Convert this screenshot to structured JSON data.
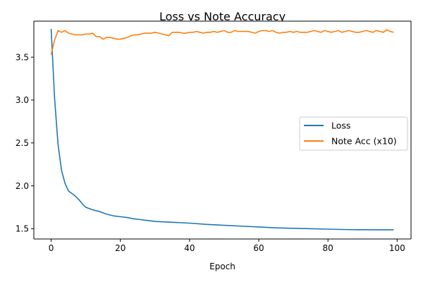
{
  "chart_data": {
    "type": "line",
    "title": "Loss vs Note Accuracy",
    "xlabel": "Epoch",
    "ylabel": "",
    "xlim": [
      -5,
      104
    ],
    "ylim": [
      1.38,
      3.92
    ],
    "xticks": [
      0,
      20,
      40,
      60,
      80,
      100
    ],
    "yticks": [
      1.5,
      2.0,
      2.5,
      3.0,
      3.5
    ],
    "ytick_labels": [
      "1.5",
      "2.0",
      "2.5",
      "3.0",
      "3.5"
    ],
    "grid": false,
    "legend_position": "center-right",
    "series": [
      {
        "name": "Loss",
        "color": "#1f77b4",
        "x": [
          0,
          1,
          2,
          3,
          4,
          5,
          6,
          7,
          8,
          9,
          10,
          12,
          14,
          16,
          18,
          20,
          22,
          24,
          26,
          28,
          30,
          35,
          40,
          45,
          50,
          55,
          60,
          65,
          70,
          75,
          80,
          85,
          90,
          95,
          99
        ],
        "values": [
          3.83,
          3.02,
          2.48,
          2.18,
          2.03,
          1.94,
          1.91,
          1.88,
          1.84,
          1.79,
          1.75,
          1.72,
          1.7,
          1.67,
          1.65,
          1.64,
          1.63,
          1.615,
          1.605,
          1.595,
          1.585,
          1.575,
          1.565,
          1.55,
          1.54,
          1.53,
          1.52,
          1.51,
          1.505,
          1.5,
          1.495,
          1.49,
          1.488,
          1.487,
          1.487
        ]
      },
      {
        "name": "Note Acc (x10)",
        "color": "#ff7f0e",
        "x": [
          0,
          1,
          2,
          3,
          4,
          5,
          6,
          7,
          8,
          9,
          10,
          11,
          12,
          13,
          14,
          15,
          16,
          17,
          18,
          19,
          20,
          21,
          22,
          23,
          24,
          25,
          26,
          27,
          28,
          29,
          30,
          31,
          32,
          33,
          34,
          35,
          36,
          37,
          38,
          39,
          40,
          41,
          42,
          43,
          44,
          45,
          46,
          47,
          48,
          49,
          50,
          51,
          52,
          53,
          54,
          55,
          56,
          57,
          58,
          59,
          60,
          61,
          62,
          63,
          64,
          65,
          66,
          67,
          68,
          69,
          70,
          71,
          72,
          73,
          74,
          75,
          76,
          77,
          78,
          79,
          80,
          81,
          82,
          83,
          84,
          85,
          86,
          87,
          88,
          89,
          90,
          91,
          92,
          93,
          94,
          95,
          96,
          97,
          98,
          99
        ],
        "values": [
          3.53,
          3.7,
          3.81,
          3.79,
          3.81,
          3.78,
          3.77,
          3.76,
          3.76,
          3.76,
          3.77,
          3.77,
          3.78,
          3.74,
          3.74,
          3.71,
          3.73,
          3.73,
          3.72,
          3.71,
          3.71,
          3.72,
          3.73,
          3.75,
          3.76,
          3.76,
          3.77,
          3.78,
          3.78,
          3.78,
          3.79,
          3.78,
          3.77,
          3.76,
          3.75,
          3.79,
          3.79,
          3.79,
          3.78,
          3.78,
          3.79,
          3.79,
          3.8,
          3.79,
          3.78,
          3.79,
          3.79,
          3.8,
          3.79,
          3.8,
          3.81,
          3.79,
          3.79,
          3.81,
          3.8,
          3.8,
          3.8,
          3.8,
          3.79,
          3.78,
          3.8,
          3.81,
          3.81,
          3.8,
          3.81,
          3.79,
          3.78,
          3.79,
          3.79,
          3.8,
          3.79,
          3.8,
          3.79,
          3.79,
          3.79,
          3.8,
          3.81,
          3.8,
          3.79,
          3.81,
          3.8,
          3.79,
          3.8,
          3.81,
          3.79,
          3.8,
          3.81,
          3.8,
          3.79,
          3.79,
          3.8,
          3.81,
          3.8,
          3.79,
          3.81,
          3.8,
          3.79,
          3.82,
          3.8,
          3.79
        ]
      }
    ]
  }
}
